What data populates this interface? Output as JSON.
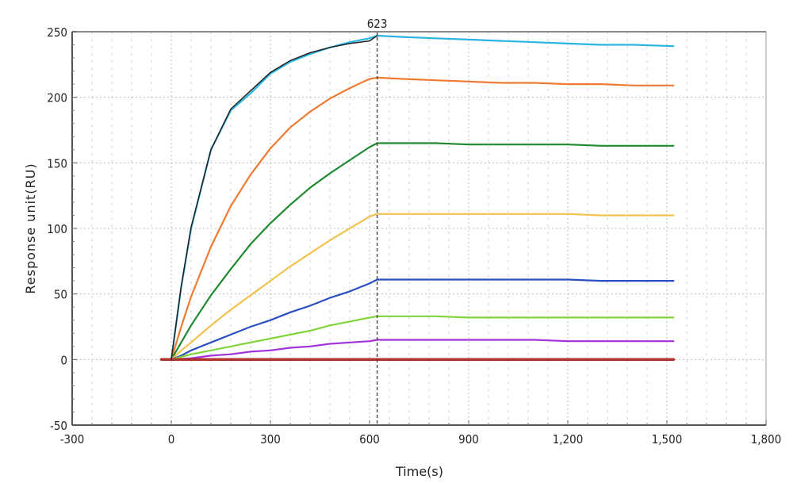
{
  "chart_data": {
    "type": "line",
    "title": "",
    "xlabel": "Time(s)",
    "ylabel": "Response unit(RU)",
    "xlim": [
      -300,
      1800
    ],
    "ylim": [
      -50,
      250
    ],
    "x_ticks": [
      -300,
      0,
      300,
      600,
      900,
      1200,
      1500,
      1800
    ],
    "x_tick_labels": [
      "-300",
      "0",
      "300",
      "600",
      "900",
      "1,200",
      "1,500",
      "1,800"
    ],
    "y_ticks": [
      -50,
      0,
      50,
      100,
      150,
      200,
      250
    ],
    "y_tick_labels": [
      "-50",
      "0",
      "50",
      "100",
      "150",
      "200",
      "250"
    ],
    "grid": true,
    "cursor": {
      "x": 623,
      "label": "623"
    },
    "x": [
      0,
      30,
      60,
      120,
      180,
      240,
      300,
      360,
      420,
      480,
      540,
      600,
      623,
      700,
      800,
      900,
      1000,
      1100,
      1200,
      1300,
      1400,
      1520
    ],
    "series": [
      {
        "color": "#2ab4e4",
        "values": [
          0,
          55,
          100,
          160,
          190,
          203,
          218,
          227,
          233,
          238,
          242,
          245,
          247,
          246,
          245,
          244,
          243,
          242,
          241,
          240,
          240,
          239
        ]
      },
      {
        "color": "#ef7a32",
        "values": [
          0,
          25,
          48,
          86,
          117,
          141,
          161,
          177,
          189,
          199,
          207,
          214,
          215,
          214,
          213,
          212,
          211,
          211,
          210,
          210,
          209,
          209
        ]
      },
      {
        "color": "#1f8a30",
        "values": [
          0,
          13,
          26,
          49,
          69,
          88,
          104,
          118,
          131,
          142,
          152,
          162,
          165,
          165,
          165,
          164,
          164,
          164,
          164,
          163,
          163,
          163
        ]
      },
      {
        "color": "#f2c24f",
        "values": [
          0,
          7,
          13,
          26,
          38,
          49,
          60,
          71,
          81,
          91,
          100,
          109,
          111,
          111,
          111,
          111,
          111,
          111,
          111,
          110,
          110,
          110
        ]
      },
      {
        "color": "#2b4fc2",
        "values": [
          0,
          3,
          7,
          13,
          19,
          25,
          30,
          36,
          41,
          47,
          52,
          58,
          61,
          61,
          61,
          61,
          61,
          61,
          61,
          60,
          60,
          60
        ]
      },
      {
        "color": "#80d43b",
        "values": [
          0,
          2,
          4,
          7,
          10,
          13,
          16,
          19,
          22,
          26,
          29,
          32,
          33,
          33,
          33,
          32,
          32,
          32,
          32,
          32,
          32,
          32
        ]
      },
      {
        "color": "#a232da",
        "values": [
          0,
          0.5,
          1,
          3,
          4,
          6,
          7,
          9,
          10,
          12,
          13,
          14,
          15,
          15,
          15,
          15,
          15,
          15,
          14,
          14,
          14,
          14
        ]
      },
      {
        "color": "#b23232",
        "x": [
          -30,
          1520
        ],
        "values": [
          0,
          0
        ]
      },
      {
        "color": "#222222",
        "x": [
          0,
          30,
          60,
          120,
          180,
          240,
          300,
          360,
          420,
          480,
          540,
          600,
          623
        ],
        "values": [
          0,
          56,
          101,
          160,
          191,
          205,
          219,
          228,
          234,
          238,
          241,
          243,
          247
        ]
      }
    ]
  }
}
